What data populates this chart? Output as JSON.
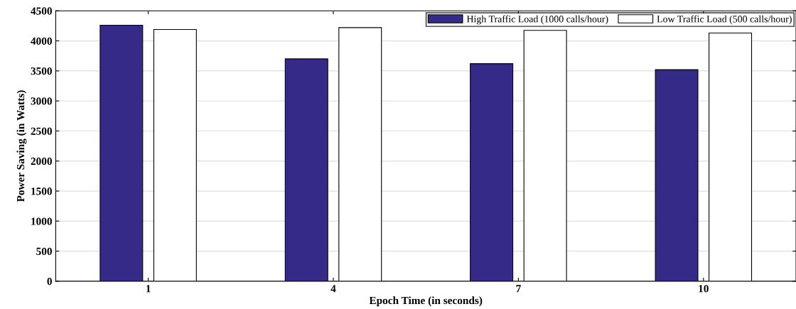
{
  "chart_data": {
    "type": "bar",
    "xlabel": "Epoch Time (in seconds)",
    "ylabel": "Power Saving (in Watts)",
    "categories": [
      "1",
      "4",
      "7",
      "10"
    ],
    "series": [
      {
        "name": "High Traffic Load (1000 calls/hour)",
        "color": "#352a87",
        "values": [
          4260,
          3700,
          3620,
          3520
        ]
      },
      {
        "name": "Low Traffic Load (500 calls/hour)",
        "color": "#ffffff",
        "values": [
          4190,
          4220,
          4175,
          4130
        ]
      }
    ],
    "ylim": [
      0,
      4500
    ],
    "yticks": [
      0,
      500,
      1000,
      1500,
      2000,
      2500,
      3000,
      3500,
      4000,
      4500
    ],
    "grid": "y",
    "legend": "top right"
  }
}
